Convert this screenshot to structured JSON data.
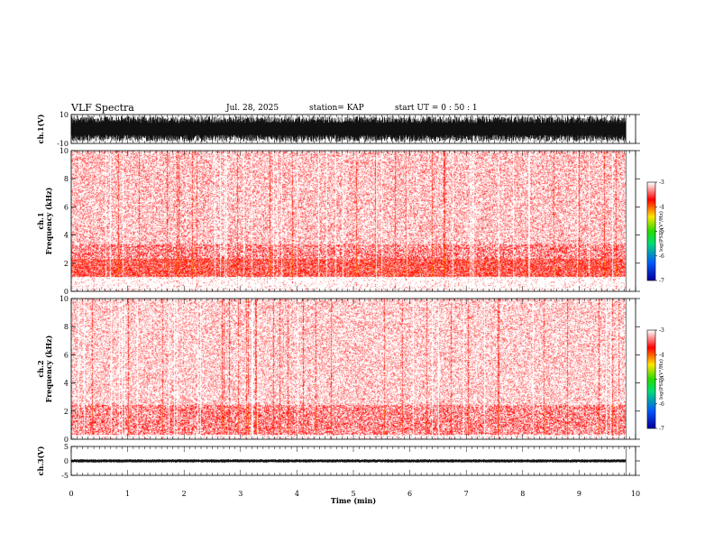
{
  "header": {
    "title": "VLF Spectra",
    "date": "Jul. 28, 2025",
    "station": "station= KAP",
    "start": "start  UT =   0 : 50 : 1"
  },
  "chart_data": [
    {
      "type": "line",
      "panel": "ch1-waveform",
      "ylabel": "ch.1(V)",
      "ylim": [
        -10,
        10
      ],
      "yticks": [
        "10",
        "-10"
      ],
      "x_range_min": [
        0,
        9.83
      ],
      "description_values": {
        "typical_min_v": -9,
        "typical_max_v": 9
      }
    },
    {
      "type": "heatmap",
      "panel": "ch1-spectrogram",
      "ylabel": "ch.1",
      "ylabel2": "Frequency  (kHz)",
      "ylim": [
        0,
        10
      ],
      "yticks": [
        "0",
        "2",
        "4",
        "6",
        "8",
        "10"
      ],
      "x_range_min": [
        0,
        9.83
      ],
      "bands": [
        {
          "from_khz": 1.0,
          "to_khz": 2.3,
          "level": -3.5
        },
        {
          "from_khz": 2.3,
          "to_khz": 3.3,
          "level": -3.3
        },
        {
          "from_khz": 3.3,
          "to_khz": 10,
          "level": -3.1
        }
      ],
      "colorbar": {
        "label": "log(PSD)(V²/Hz)",
        "min": -7,
        "max": -3,
        "ticks": [
          "-3",
          "-4",
          "-5",
          "-6",
          "-7"
        ]
      }
    },
    {
      "type": "heatmap",
      "panel": "ch2-spectrogram",
      "ylabel": "ch.2",
      "ylabel2": "Frequency  (kHz)",
      "ylim": [
        0,
        10
      ],
      "yticks": [
        "0",
        "2",
        "4",
        "6",
        "8",
        "10"
      ],
      "x_range_min": [
        0,
        9.83
      ],
      "bands": [
        {
          "from_khz": 0.3,
          "to_khz": 2.4,
          "level": -3.3
        },
        {
          "from_khz": 2.4,
          "to_khz": 10,
          "level": -3.05
        }
      ],
      "colorbar": {
        "label": "log(PSD)(V²/Hz)",
        "min": -7,
        "max": -3,
        "ticks": [
          "-3",
          "-4",
          "-5",
          "-6",
          "-7"
        ]
      }
    },
    {
      "type": "line",
      "panel": "ch3-waveform",
      "ylabel": "ch.3(V)",
      "ylim": [
        -5,
        5
      ],
      "yticks": [
        "5",
        "0",
        "-5"
      ],
      "x_range_min": [
        0,
        9.83
      ],
      "description_values": {
        "typical_min_v": -0.6,
        "typical_max_v": 0.6
      }
    }
  ],
  "xaxis": {
    "label": "Time  (min)",
    "xlim": [
      0,
      10
    ],
    "ticks": [
      "0",
      "1",
      "2",
      "3",
      "4",
      "5",
      "6",
      "7",
      "8",
      "9",
      "10"
    ]
  },
  "colors": {
    "background": "#ffffff",
    "axes": "#000000",
    "low": "#ffffff",
    "mid": "#ff0000",
    "high": "#ffe000"
  }
}
